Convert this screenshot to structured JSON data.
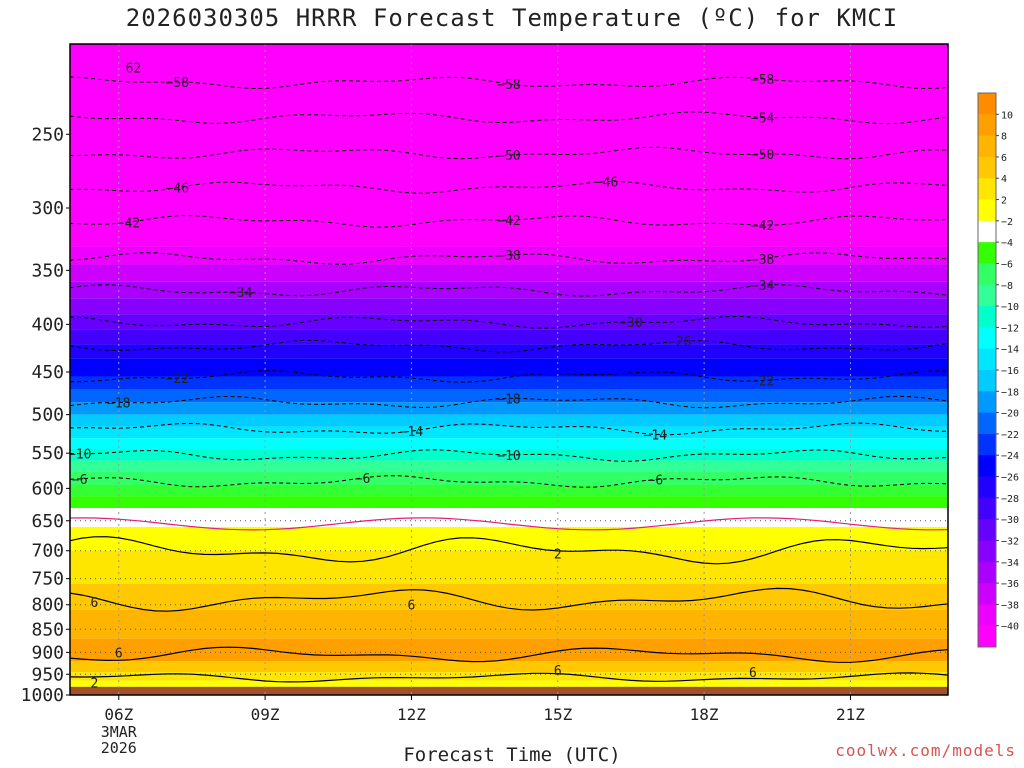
{
  "title": "2026030305 HRRR Forecast Temperature (ºC) for KMCI",
  "xlabel": "Forecast Time (UTC)",
  "credit": "coolwx.com/models",
  "chart_data": {
    "type": "heatmap",
    "x_unit": "hour UTC",
    "x_ticks": [
      {
        "value": 6,
        "label": "06Z"
      },
      {
        "value": 9,
        "label": "09Z"
      },
      {
        "value": 12,
        "label": "12Z"
      },
      {
        "value": 15,
        "label": "15Z"
      },
      {
        "value": 18,
        "label": "18Z"
      },
      {
        "value": 21,
        "label": "21Z"
      }
    ],
    "x_sub_labels": [
      "3MAR",
      "2026"
    ],
    "xlim": [
      5,
      23
    ],
    "y_ticks": [
      250,
      300,
      350,
      400,
      450,
      500,
      550,
      600,
      650,
      700,
      750,
      800,
      850,
      900,
      950,
      1000
    ],
    "ylim": [
      200,
      1000
    ],
    "ground_color": "#a0522d",
    "colorbar": {
      "labels": [
        10,
        8,
        6,
        4,
        2,
        -2,
        -4,
        -6,
        -8,
        -10,
        -12,
        -14,
        -16,
        -18,
        -20,
        -22,
        -24,
        -26,
        -28,
        -30,
        -32,
        -34,
        -36,
        -38,
        -40
      ],
      "colors": [
        "#ff8c00",
        "#ffa000",
        "#ffb400",
        "#ffc800",
        "#ffe600",
        "#ffff00",
        "#ffffff",
        "#33ff00",
        "#33ff66",
        "#33ff99",
        "#00ffcc",
        "#00ffff",
        "#00e6ff",
        "#00ccff",
        "#0099ff",
        "#0066ff",
        "#0033ff",
        "#0000ff",
        "#2200ff",
        "#4400ff",
        "#6600ff",
        "#8800ff",
        "#aa00ff",
        "#cc00ff",
        "#ee00ff",
        "#ff00ff"
      ]
    },
    "bands": [
      {
        "top": 200,
        "bottom": 330,
        "color": "#ff00ff"
      },
      {
        "top": 330,
        "bottom": 345,
        "color": "#ee00ff"
      },
      {
        "top": 345,
        "bottom": 360,
        "color": "#cc00ff"
      },
      {
        "top": 360,
        "bottom": 375,
        "color": "#aa00ff"
      },
      {
        "top": 375,
        "bottom": 390,
        "color": "#8800ff"
      },
      {
        "top": 390,
        "bottom": 405,
        "color": "#6600ff"
      },
      {
        "top": 405,
        "bottom": 420,
        "color": "#4400ff"
      },
      {
        "top": 420,
        "bottom": 435,
        "color": "#2200ff"
      },
      {
        "top": 435,
        "bottom": 455,
        "color": "#0000ff"
      },
      {
        "top": 455,
        "bottom": 470,
        "color": "#0033ff"
      },
      {
        "top": 470,
        "bottom": 485,
        "color": "#0066ff"
      },
      {
        "top": 485,
        "bottom": 500,
        "color": "#0099ff"
      },
      {
        "top": 500,
        "bottom": 515,
        "color": "#00ccff"
      },
      {
        "top": 515,
        "bottom": 530,
        "color": "#00e6ff"
      },
      {
        "top": 530,
        "bottom": 545,
        "color": "#00ffff"
      },
      {
        "top": 545,
        "bottom": 560,
        "color": "#00ffcc"
      },
      {
        "top": 560,
        "bottom": 575,
        "color": "#33ff99"
      },
      {
        "top": 575,
        "bottom": 595,
        "color": "#33ff66"
      },
      {
        "top": 595,
        "bottom": 612,
        "color": "#33ff33"
      },
      {
        "top": 612,
        "bottom": 630,
        "color": "#33ff00"
      },
      {
        "top": 630,
        "bottom": 660,
        "color": "#ffffff"
      },
      {
        "top": 660,
        "bottom": 700,
        "color": "#ffff00"
      },
      {
        "top": 700,
        "bottom": 760,
        "color": "#ffe600"
      },
      {
        "top": 760,
        "bottom": 810,
        "color": "#ffc800"
      },
      {
        "top": 810,
        "bottom": 870,
        "color": "#ffb400"
      },
      {
        "top": 870,
        "bottom": 920,
        "color": "#ffa000"
      },
      {
        "top": 920,
        "bottom": 945,
        "color": "#ffc800"
      },
      {
        "top": 945,
        "bottom": 965,
        "color": "#ffe600"
      },
      {
        "top": 965,
        "bottom": 980,
        "color": "#ffff00"
      },
      {
        "top": 980,
        "bottom": 1000,
        "color": "#a0522d"
      }
    ],
    "contours": [
      {
        "value": -58,
        "pressure": 220,
        "labels": [
          [
            7.2,
            -58
          ],
          [
            14.0,
            -58
          ],
          [
            19.2,
            -58
          ]
        ]
      },
      {
        "value": -54,
        "pressure": 240,
        "labels": [
          [
            19.2,
            -54
          ]
        ]
      },
      {
        "value": -50,
        "pressure": 262,
        "labels": [
          [
            14.0,
            -50
          ],
          [
            19.2,
            -50
          ]
        ]
      },
      {
        "value": -46,
        "pressure": 285,
        "labels": [
          [
            7.2,
            -46
          ],
          [
            16.0,
            -46
          ]
        ]
      },
      {
        "value": -42,
        "pressure": 310,
        "labels": [
          [
            6.2,
            -42
          ],
          [
            14.0,
            -42
          ],
          [
            19.2,
            -42
          ]
        ]
      },
      {
        "value": -38,
        "pressure": 340,
        "labels": [
          [
            14.0,
            -38
          ],
          [
            19.2,
            -38
          ]
        ]
      },
      {
        "value": -34,
        "pressure": 368,
        "labels": [
          [
            8.5,
            -34
          ],
          [
            19.2,
            -34
          ]
        ]
      },
      {
        "value": -30,
        "pressure": 398,
        "labels": [
          [
            16.5,
            -30
          ]
        ]
      },
      {
        "value": -26,
        "pressure": 422,
        "labels": [
          [
            17.5,
            -26
          ]
        ]
      },
      {
        "value": -22,
        "pressure": 455,
        "labels": [
          [
            7.2,
            -22
          ],
          [
            19.2,
            -22
          ]
        ]
      },
      {
        "value": -18,
        "pressure": 485,
        "labels": [
          [
            6.0,
            -18
          ],
          [
            14.0,
            -18
          ]
        ]
      },
      {
        "value": -14,
        "pressure": 518,
        "labels": [
          [
            12.0,
            -14
          ],
          [
            17.0,
            -14
          ]
        ]
      },
      {
        "value": -10,
        "pressure": 553,
        "labels": [
          [
            5.2,
            -10
          ],
          [
            14.0,
            -10
          ]
        ]
      },
      {
        "value": -6,
        "pressure": 590,
        "labels": [
          [
            5.2,
            -6
          ],
          [
            11.0,
            -6
          ],
          [
            17.0,
            -6
          ]
        ]
      }
    ],
    "solid_labels": [
      {
        "x": 15.0,
        "p": 705,
        "label": "2"
      },
      {
        "x": 5.5,
        "p": 795,
        "label": "6"
      },
      {
        "x": 12.0,
        "p": 800,
        "label": "6"
      },
      {
        "x": 6.0,
        "p": 900,
        "label": "6"
      },
      {
        "x": 15.0,
        "p": 940,
        "label": "6"
      },
      {
        "x": 19.0,
        "p": 945,
        "label": "6"
      },
      {
        "x": 5.5,
        "p": 970,
        "label": "2"
      },
      {
        "x": 6.3,
        "p": 212,
        "label": "62"
      }
    ]
  }
}
